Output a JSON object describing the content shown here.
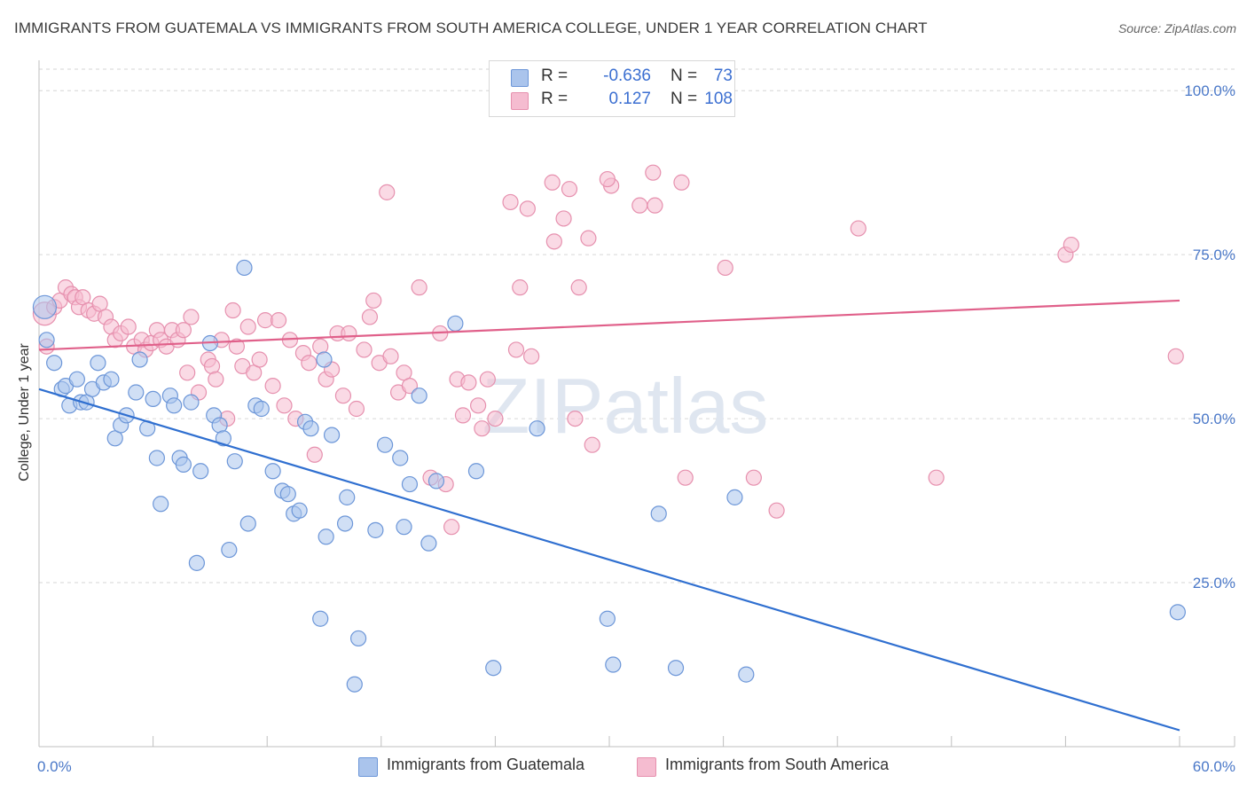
{
  "title": "IMMIGRANTS FROM GUATEMALA VS IMMIGRANTS FROM SOUTH AMERICA COLLEGE, UNDER 1 YEAR CORRELATION CHART",
  "source": "Source: ZipAtlas.com",
  "watermark": "ZIPatlas",
  "legend": {
    "rows": [
      {
        "r_label": "R =",
        "r_value": "-0.636",
        "n_label": "N =",
        "n_value": "73"
      },
      {
        "r_label": "R =",
        "r_value": "0.127",
        "n_label": "N =",
        "n_value": "108"
      }
    ],
    "bottom": [
      "Immigrants from Guatemala",
      "Immigrants from South America"
    ]
  },
  "colors": {
    "guatemala_fill": "#aac4ec",
    "guatemala_stroke": "#6c96d8",
    "guatemala_line": "#2f6fd0",
    "south_america_fill": "#f5bcd0",
    "south_america_stroke": "#e690ae",
    "south_america_line": "#e0608a",
    "tick_text": "#4a78c8",
    "grid": "#d6d6d6"
  },
  "chart_data": {
    "type": "scatter",
    "title": "IMMIGRANTS FROM GUATEMALA VS IMMIGRANTS FROM SOUTH AMERICA COLLEGE, UNDER 1 YEAR CORRELATION CHART",
    "xlabel": "",
    "ylabel": "College, Under 1 year",
    "xlim": [
      0,
      60
    ],
    "ylim": [
      0,
      103
    ],
    "x_tick_labels": [
      "0.0%",
      "60.0%"
    ],
    "y_ticks": [
      25,
      50,
      75,
      100
    ],
    "y_tick_labels": [
      "25.0%",
      "50.0%",
      "75.0%",
      "100.0%"
    ],
    "grid": true,
    "series": [
      {
        "name": "Immigrants from Guatemala",
        "R": -0.636,
        "N": 73,
        "trend": {
          "x": [
            0,
            60
          ],
          "y": [
            54.5,
            2.5
          ]
        },
        "points": [
          [
            0.3,
            67.0
          ],
          [
            0.4,
            62.0
          ],
          [
            0.8,
            58.5
          ],
          [
            1.2,
            54.5
          ],
          [
            1.4,
            55.0
          ],
          [
            1.6,
            52.0
          ],
          [
            2.0,
            56.0
          ],
          [
            2.2,
            52.5
          ],
          [
            2.5,
            52.5
          ],
          [
            2.8,
            54.5
          ],
          [
            3.1,
            58.5
          ],
          [
            3.4,
            55.5
          ],
          [
            3.8,
            56.0
          ],
          [
            4.0,
            47.0
          ],
          [
            4.3,
            49.0
          ],
          [
            4.6,
            50.5
          ],
          [
            5.1,
            54.0
          ],
          [
            5.3,
            59.0
          ],
          [
            5.7,
            48.5
          ],
          [
            6.0,
            53.0
          ],
          [
            6.2,
            44.0
          ],
          [
            6.4,
            37.0
          ],
          [
            6.9,
            53.5
          ],
          [
            7.1,
            52.0
          ],
          [
            7.4,
            44.0
          ],
          [
            7.6,
            43.0
          ],
          [
            8.0,
            52.5
          ],
          [
            8.3,
            28.0
          ],
          [
            8.5,
            42.0
          ],
          [
            9.0,
            61.5
          ],
          [
            9.2,
            50.5
          ],
          [
            9.5,
            49.0
          ],
          [
            9.7,
            47.0
          ],
          [
            10.0,
            30.0
          ],
          [
            10.3,
            43.5
          ],
          [
            10.8,
            73.0
          ],
          [
            11.0,
            34.0
          ],
          [
            11.4,
            52.0
          ],
          [
            11.7,
            51.5
          ],
          [
            12.3,
            42.0
          ],
          [
            12.8,
            39.0
          ],
          [
            13.1,
            38.5
          ],
          [
            13.4,
            35.5
          ],
          [
            13.7,
            36.0
          ],
          [
            14.0,
            49.5
          ],
          [
            14.3,
            48.5
          ],
          [
            14.8,
            19.5
          ],
          [
            15.1,
            32.0
          ],
          [
            15.4,
            47.5
          ],
          [
            15.0,
            59.0
          ],
          [
            16.2,
            38.0
          ],
          [
            16.1,
            34.0
          ],
          [
            16.8,
            16.5
          ],
          [
            16.6,
            9.5
          ],
          [
            17.7,
            33.0
          ],
          [
            18.2,
            46.0
          ],
          [
            19.0,
            44.0
          ],
          [
            19.2,
            33.5
          ],
          [
            19.5,
            40.0
          ],
          [
            20.0,
            53.5
          ],
          [
            20.5,
            31.0
          ],
          [
            20.9,
            40.5
          ],
          [
            21.9,
            64.5
          ],
          [
            23.0,
            42.0
          ],
          [
            23.9,
            12.0
          ],
          [
            26.2,
            48.5
          ],
          [
            29.9,
            19.5
          ],
          [
            30.2,
            12.5
          ],
          [
            32.6,
            35.5
          ],
          [
            33.5,
            12.0
          ],
          [
            36.6,
            38.0
          ],
          [
            37.2,
            11.0
          ],
          [
            59.9,
            20.5
          ]
        ]
      },
      {
        "name": "Immigrants from South America",
        "R": 0.127,
        "N": 108,
        "trend": {
          "x": [
            0,
            60
          ],
          "y": [
            60.5,
            68.0
          ]
        },
        "points": [
          [
            0.3,
            66.0
          ],
          [
            0.4,
            61.0
          ],
          [
            0.8,
            67.0
          ],
          [
            1.1,
            68.0
          ],
          [
            1.4,
            70.0
          ],
          [
            1.7,
            69.0
          ],
          [
            1.9,
            68.5
          ],
          [
            2.1,
            67.0
          ],
          [
            2.3,
            68.5
          ],
          [
            2.6,
            66.5
          ],
          [
            2.9,
            66.0
          ],
          [
            3.2,
            67.5
          ],
          [
            3.5,
            65.5
          ],
          [
            3.8,
            64.0
          ],
          [
            4.0,
            62.0
          ],
          [
            4.3,
            63.0
          ],
          [
            4.7,
            64.0
          ],
          [
            5.0,
            61.0
          ],
          [
            5.4,
            62.0
          ],
          [
            5.6,
            60.5
          ],
          [
            5.9,
            61.5
          ],
          [
            6.2,
            63.5
          ],
          [
            6.4,
            62.0
          ],
          [
            6.7,
            61.0
          ],
          [
            7.0,
            63.5
          ],
          [
            7.3,
            62.0
          ],
          [
            7.6,
            63.5
          ],
          [
            7.8,
            57.0
          ],
          [
            8.0,
            65.5
          ],
          [
            8.4,
            54.0
          ],
          [
            8.9,
            59.0
          ],
          [
            9.1,
            58.0
          ],
          [
            9.3,
            56.0
          ],
          [
            9.6,
            62.0
          ],
          [
            9.9,
            50.0
          ],
          [
            10.2,
            66.5
          ],
          [
            10.4,
            61.0
          ],
          [
            10.7,
            58.0
          ],
          [
            11.0,
            64.0
          ],
          [
            11.3,
            57.0
          ],
          [
            11.6,
            59.0
          ],
          [
            11.9,
            65.0
          ],
          [
            12.3,
            55.0
          ],
          [
            12.6,
            65.0
          ],
          [
            12.9,
            52.0
          ],
          [
            13.2,
            62.0
          ],
          [
            13.5,
            50.0
          ],
          [
            13.9,
            60.0
          ],
          [
            14.2,
            58.5
          ],
          [
            14.5,
            44.5
          ],
          [
            14.8,
            61.0
          ],
          [
            15.1,
            56.0
          ],
          [
            15.4,
            57.5
          ],
          [
            15.7,
            63.0
          ],
          [
            16.0,
            53.5
          ],
          [
            16.3,
            63.0
          ],
          [
            16.7,
            51.5
          ],
          [
            17.1,
            60.5
          ],
          [
            17.4,
            65.5
          ],
          [
            17.6,
            68.0
          ],
          [
            17.9,
            58.5
          ],
          [
            18.3,
            84.5
          ],
          [
            18.5,
            59.5
          ],
          [
            18.9,
            54.0
          ],
          [
            19.2,
            57.0
          ],
          [
            19.5,
            55.0
          ],
          [
            20.0,
            70.0
          ],
          [
            20.6,
            41.0
          ],
          [
            21.1,
            63.0
          ],
          [
            21.4,
            40.0
          ],
          [
            21.7,
            33.5
          ],
          [
            22.0,
            56.0
          ],
          [
            22.6,
            55.5
          ],
          [
            22.3,
            50.5
          ],
          [
            23.1,
            52.0
          ],
          [
            23.3,
            48.5
          ],
          [
            23.6,
            56.0
          ],
          [
            24.0,
            50.0
          ],
          [
            24.8,
            83.0
          ],
          [
            25.1,
            60.5
          ],
          [
            25.3,
            70.0
          ],
          [
            25.7,
            82.0
          ],
          [
            25.9,
            59.5
          ],
          [
            27.0,
            86.0
          ],
          [
            27.1,
            77.0
          ],
          [
            27.6,
            80.5
          ],
          [
            27.9,
            85.0
          ],
          [
            28.2,
            50.0
          ],
          [
            28.4,
            70.0
          ],
          [
            28.9,
            77.5
          ],
          [
            29.1,
            46.0
          ],
          [
            30.1,
            85.5
          ],
          [
            29.9,
            86.5
          ],
          [
            31.6,
            82.5
          ],
          [
            32.3,
            87.5
          ],
          [
            32.4,
            82.5
          ],
          [
            33.8,
            86.0
          ],
          [
            34.0,
            41.0
          ],
          [
            36.1,
            73.0
          ],
          [
            37.6,
            41.0
          ],
          [
            38.8,
            36.0
          ],
          [
            43.1,
            79.0
          ],
          [
            47.2,
            41.0
          ],
          [
            54.0,
            75.0
          ],
          [
            54.3,
            76.5
          ],
          [
            59.8,
            59.5
          ]
        ]
      }
    ]
  }
}
